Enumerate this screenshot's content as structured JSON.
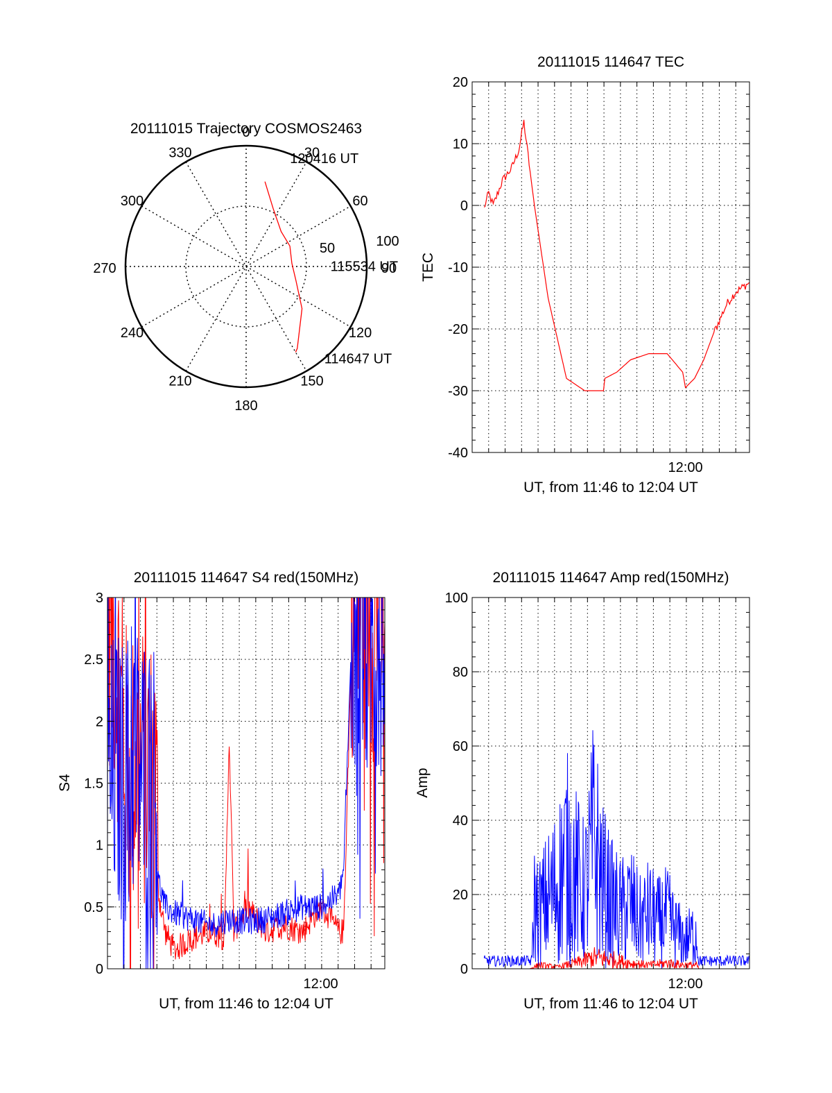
{
  "chart_data": [
    {
      "id": "trajectory",
      "type": "polar",
      "title": "20111015 Trajectory COSMOS2463",
      "azimuth_labels": [
        "0",
        "30",
        "60",
        "90",
        "120",
        "150",
        "180",
        "210",
        "240",
        "270",
        "300",
        "330"
      ],
      "ring_labels": [
        "50",
        "100"
      ],
      "r_max": 100,
      "trajectory_color": "#ff0000",
      "trajectory": [
        {
          "az": 12.5,
          "r": 72
        },
        {
          "az": 25,
          "r": 53
        },
        {
          "az": 45,
          "r": 41
        },
        {
          "az": 65,
          "r": 40
        },
        {
          "az": 86,
          "r": 38
        },
        {
          "az": 106,
          "r": 43
        },
        {
          "az": 127,
          "r": 58
        },
        {
          "az": 148,
          "r": 80
        },
        {
          "az": 150,
          "r": 82
        }
      ],
      "annotations": [
        {
          "text": "120416 UT",
          "az": 23,
          "r": 93
        },
        {
          "text": "115534 UT",
          "az": 93,
          "r": 70
        },
        {
          "text": "114647 UT",
          "az": 141,
          "r": 103
        }
      ]
    },
    {
      "id": "tec",
      "type": "line",
      "title": "20111015 114647 TEC",
      "ylabel": "TEC",
      "xlabel": "UT, from 11:46 to 12:04 UT",
      "xlim": [
        11.767,
        12.07
      ],
      "ylim": [
        -40,
        20
      ],
      "yticks": [
        20,
        10,
        0,
        -10,
        -20,
        -30,
        -40
      ],
      "xtick_labels": [
        {
          "x": 12.0,
          "label": "12:00"
        }
      ],
      "x_gridlines": [
        11.785,
        11.803,
        11.821,
        11.839,
        11.857,
        11.875,
        11.893,
        11.911,
        11.929,
        11.947,
        11.965,
        11.983,
        12.001,
        12.019,
        12.037,
        12.055
      ],
      "series": [
        {
          "color": "#ff0000",
          "x": [
            11.78,
            11.785,
            11.79,
            11.8,
            11.81,
            11.818,
            11.8235,
            11.835,
            11.85,
            11.87,
            11.89,
            11.9105,
            11.912,
            11.925,
            11.94,
            11.96,
            11.98,
            11.997,
            12.0,
            12.01,
            12.02,
            12.03,
            12.045,
            12.055,
            12.07
          ],
          "y": [
            -0.5,
            2,
            0,
            4,
            6,
            9,
            13.5,
            0,
            -15,
            -28,
            -30,
            -30,
            -28,
            -27,
            -25,
            -24,
            -24,
            -27,
            -29.5,
            -28,
            -25,
            -21,
            -16,
            -14,
            -12.5
          ]
        }
      ]
    },
    {
      "id": "s4",
      "type": "line",
      "title": "20111015 114647 S4 red(150MHz)",
      "ylabel": "S4",
      "xlabel": "UT, from 11:46 to 12:04 UT",
      "xlim": [
        11.767,
        12.07
      ],
      "ylim": [
        0,
        3
      ],
      "yticks": [
        "3",
        "2.5",
        "2",
        "1.5",
        "1",
        "0.5",
        "0"
      ],
      "ytick_values": [
        3,
        2.5,
        2,
        1.5,
        1,
        0.5,
        0
      ],
      "xtick_labels": [
        {
          "x": 12.0,
          "label": "12:00"
        }
      ],
      "x_gridlines": [
        11.785,
        11.803,
        11.821,
        11.839,
        11.857,
        11.875,
        11.893,
        11.911,
        11.929,
        11.947,
        11.965,
        11.983,
        12.001,
        12.019,
        12.037,
        12.055
      ],
      "series": [
        {
          "color": "#ff0000",
          "x": [
            11.767,
            11.775,
            11.785,
            11.79,
            11.8,
            11.82,
            11.823,
            11.83,
            11.84,
            11.86,
            11.88,
            11.895,
            11.9,
            11.905,
            11.92,
            11.94,
            11.96,
            11.98,
            12.0,
            12.02,
            12.025,
            12.035,
            12.05,
            12.07
          ],
          "y": [
            2.9,
            2.6,
            1.8,
            1.5,
            1.7,
            1.5,
            0.6,
            0.3,
            0.15,
            0.25,
            0.3,
            0.25,
            1.9,
            0.3,
            0.5,
            0.3,
            0.35,
            0.3,
            0.5,
            0.3,
            0.3,
            3.0,
            2.9,
            2.8
          ]
        },
        {
          "color": "#0000ff",
          "x": [
            11.767,
            11.775,
            11.785,
            11.795,
            11.805,
            11.82,
            11.823,
            11.83,
            11.84,
            11.86,
            11.88,
            11.9,
            11.92,
            11.94,
            11.96,
            11.98,
            12.0,
            12.02,
            12.025,
            12.035,
            12.05,
            12.07
          ],
          "y": [
            1.4,
            1.6,
            1.5,
            1.7,
            1.6,
            1.5,
            0.7,
            0.5,
            0.45,
            0.4,
            0.35,
            0.4,
            0.38,
            0.4,
            0.45,
            0.5,
            0.5,
            0.6,
            0.8,
            2.9,
            2.6,
            2.8
          ]
        }
      ]
    },
    {
      "id": "amp",
      "type": "line",
      "title": "20111015 114647 Amp red(150MHz)",
      "ylabel": "Amp",
      "xlabel": "UT, from 11:46 to 12:04 UT",
      "xlim": [
        11.767,
        12.07
      ],
      "ylim": [
        0,
        100
      ],
      "yticks": [
        100,
        80,
        60,
        40,
        20,
        0
      ],
      "xtick_labels": [
        {
          "x": 12.0,
          "label": "12:00"
        }
      ],
      "x_gridlines": [
        11.785,
        11.803,
        11.821,
        11.839,
        11.857,
        11.875,
        11.893,
        11.911,
        11.929,
        11.947,
        11.965,
        11.983,
        12.001,
        12.019,
        12.037,
        12.055
      ],
      "series": [
        {
          "color": "#0000ff",
          "x": [
            11.78,
            11.8,
            11.82,
            11.83,
            11.835,
            11.84,
            11.85,
            11.86,
            11.87,
            11.88,
            11.89,
            11.9,
            11.91,
            11.92,
            11.93,
            11.94,
            11.95,
            11.96,
            11.97,
            11.98,
            11.99,
            12.0,
            12.012,
            12.015,
            12.03,
            12.05,
            12.07
          ],
          "y": [
            3,
            3,
            3,
            3,
            35,
            30,
            38,
            45,
            60,
            50,
            40,
            70,
            45,
            35,
            30,
            35,
            25,
            30,
            25,
            28,
            20,
            15,
            20,
            3,
            2,
            2,
            2
          ]
        },
        {
          "color": "#ff0000",
          "x": [
            11.78,
            11.83,
            11.84,
            11.86,
            11.88,
            11.9,
            11.92,
            11.94,
            11.96,
            11.98,
            12.0,
            12.012,
            12.015,
            12.07
          ],
          "y": [
            0,
            0,
            2,
            1,
            3,
            6,
            5,
            3,
            2,
            3,
            2,
            2,
            0,
            0
          ]
        }
      ]
    }
  ]
}
